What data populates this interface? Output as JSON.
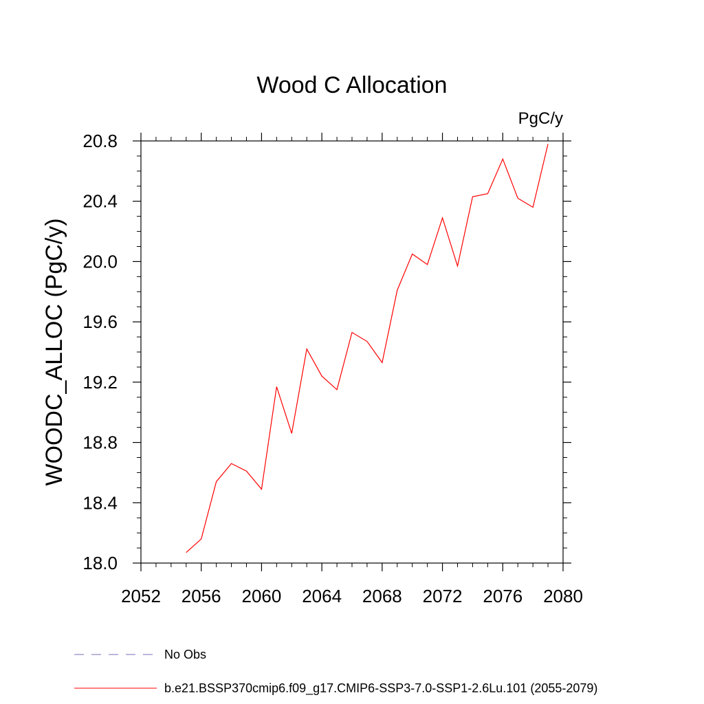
{
  "chart_data": {
    "type": "line",
    "title": "Wood C Allocation",
    "units_label": "PgC/y",
    "xlabel": "",
    "ylabel": "WOODC_ALLOC  (PgC/y)",
    "xlim": [
      2052,
      2080
    ],
    "ylim": [
      18.0,
      20.8
    ],
    "xticks": [
      "2052",
      "2056",
      "2060",
      "2064",
      "2068",
      "2072",
      "2076",
      "2080"
    ],
    "yticks": [
      "18.0",
      "18.4",
      "18.8",
      "19.2",
      "19.6",
      "20.0",
      "20.4",
      "20.8"
    ],
    "grid": false,
    "series": [
      {
        "name": "b.e21.BSSP370cmip6.f09_g17.CMIP6-SSP3-7.0-SSP1-2.6Lu.101 (2055-2079)",
        "color": "#ff0000",
        "x": [
          2055,
          2056,
          2057,
          2058,
          2059,
          2060,
          2061,
          2062,
          2063,
          2064,
          2065,
          2066,
          2067,
          2068,
          2069,
          2070,
          2071,
          2072,
          2073,
          2074,
          2075,
          2076,
          2077,
          2078,
          2079
        ],
        "y": [
          18.07,
          18.16,
          18.54,
          18.66,
          18.61,
          18.49,
          19.17,
          18.86,
          19.42,
          19.24,
          19.15,
          19.53,
          19.47,
          19.33,
          19.81,
          20.05,
          19.98,
          20.29,
          19.97,
          20.43,
          20.45,
          20.68,
          20.42,
          20.36,
          20.78
        ]
      }
    ],
    "legend": {
      "placement": "bottom",
      "entries": [
        {
          "label": "No Obs",
          "color": "#7b68b8",
          "style": "dashed"
        },
        {
          "label": "b.e21.BSSP370cmip6.f09_g17.CMIP6-SSP3-7.0-SSP1-2.6Lu.101 (2055-2079)",
          "color": "#ff0000",
          "style": "solid"
        }
      ]
    }
  }
}
